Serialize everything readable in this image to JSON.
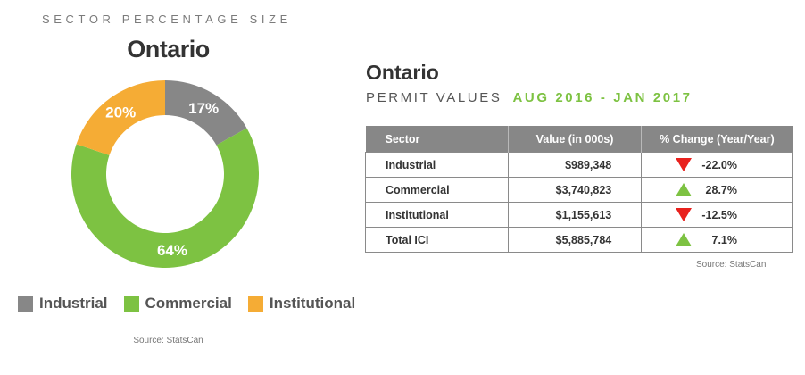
{
  "chart_data": {
    "type": "pie",
    "heading": "SECTOR PERCENTAGE SIZE",
    "title": "Ontario",
    "categories": [
      "Industrial",
      "Commercial",
      "Institutional"
    ],
    "values": [
      17,
      64,
      20
    ],
    "labels": [
      "17%",
      "64%",
      "20%"
    ],
    "colors": [
      "#878787",
      "#7dc242",
      "#f5ac35"
    ],
    "legend_position": "bottom",
    "source": "Source: StatsCan"
  },
  "table": {
    "title": "Ontario",
    "subtitle": "PERMIT VALUES",
    "date_range": "AUG 2016 - JAN 2017",
    "headers": [
      "Sector",
      "Value (in 000s)",
      "% Change (Year/Year)"
    ],
    "rows": [
      {
        "sector": "Industrial",
        "value": "$989,348",
        "direction": "down",
        "change": "-22.0%"
      },
      {
        "sector": "Commercial",
        "value": "$3,740,823",
        "direction": "up",
        "change": "28.7%"
      },
      {
        "sector": "Institutional",
        "value": "$1,155,613",
        "direction": "down",
        "change": "-12.5%"
      },
      {
        "sector": "Total ICI",
        "value": "$5,885,784",
        "direction": "up",
        "change": "7.1%"
      }
    ],
    "source": "Source: StatsCan",
    "up_color": "#7dc242",
    "down_color": "#e8211d",
    "header_color": "#878787"
  }
}
